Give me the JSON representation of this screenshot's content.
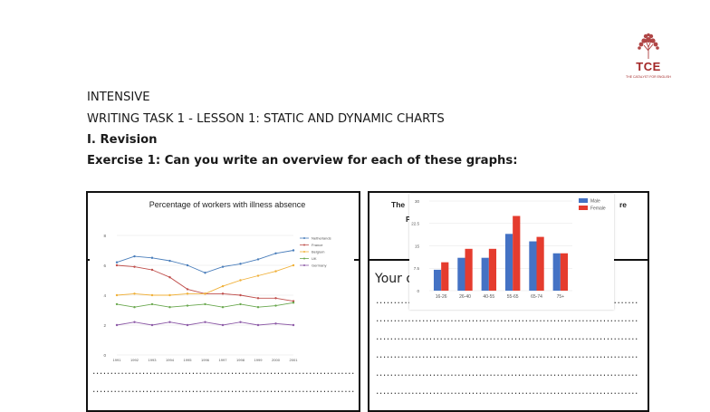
{
  "logo": {
    "brand": "TCE",
    "tagline": "THE CATALYST FOR ENGLISH"
  },
  "headings": {
    "line1": "INTENSIVE",
    "line2": "WRITING TASK 1 - LESSON 1: STATIC AND DYNAMIC CHARTS",
    "line3": "I. Revision",
    "line4": "Exercise 1: Can you write an overview for each of these graphs:"
  },
  "right_box": {
    "title_fragment_left": "The",
    "title_fragment_left2": "P",
    "title_fragment_right": "re",
    "your_text": "Your o"
  },
  "dots_text": "....................................................................................................",
  "chart_data": [
    {
      "type": "line",
      "title": "Percentage of workers with illness absence",
      "x": [
        "1991",
        "1992",
        "1993",
        "1994",
        "1995",
        "1996",
        "1997",
        "1998",
        "1999",
        "2000",
        "2001"
      ],
      "ylim": [
        0,
        8
      ],
      "yticks": [
        "0",
        "2",
        "4",
        "6",
        "8"
      ],
      "series": [
        {
          "name": "Netherlands",
          "color": "#4a7ebb",
          "values": [
            6.2,
            6.6,
            6.5,
            6.3,
            6.0,
            5.5,
            5.9,
            6.1,
            6.4,
            6.8,
            7.0
          ]
        },
        {
          "name": "France",
          "color": "#c0504d",
          "values": [
            6.0,
            5.9,
            5.7,
            5.2,
            4.4,
            4.1,
            4.1,
            4.0,
            3.8,
            3.8,
            3.6
          ]
        },
        {
          "name": "Belgium",
          "color": "#f0b13a",
          "values": [
            4.0,
            4.1,
            4.0,
            4.0,
            4.1,
            4.1,
            4.6,
            5.0,
            5.3,
            5.6,
            6.0
          ]
        },
        {
          "name": "UK",
          "color": "#6aa84f",
          "values": [
            3.4,
            3.2,
            3.4,
            3.2,
            3.3,
            3.4,
            3.2,
            3.4,
            3.2,
            3.3,
            3.5
          ]
        },
        {
          "name": "Germany",
          "color": "#8e5ca8",
          "values": [
            2.0,
            2.2,
            2.0,
            2.2,
            2.0,
            2.2,
            2.0,
            2.2,
            2.0,
            2.1,
            2.0
          ]
        }
      ],
      "legend": "right",
      "grid": true
    },
    {
      "type": "bar",
      "categories": [
        "16-26",
        "26-40",
        "40-55",
        "55-65",
        "65-74",
        "75+"
      ],
      "ylim": [
        0,
        30
      ],
      "yticks": [
        "0",
        "7.5",
        "15",
        "22.5",
        "30"
      ],
      "series": [
        {
          "name": "Male",
          "color": "#4472c4",
          "values": [
            7,
            11,
            11,
            19,
            16.5,
            12.5
          ]
        },
        {
          "name": "Female",
          "color": "#e53c2e",
          "values": [
            9.5,
            14,
            14,
            25,
            18,
            12.5
          ]
        }
      ],
      "legend": "top-right",
      "grid": true
    }
  ]
}
